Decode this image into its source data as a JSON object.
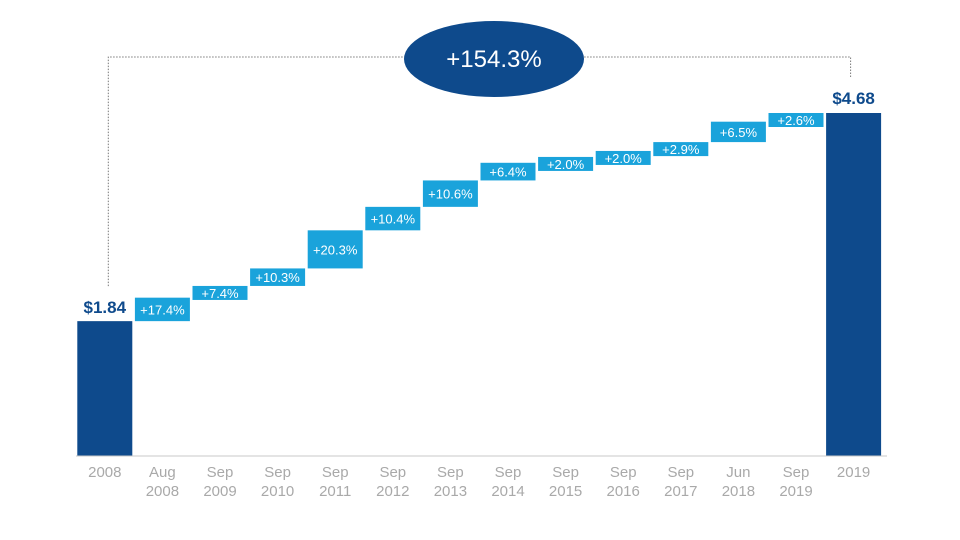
{
  "chart_data": {
    "type": "bar",
    "subtype": "waterfall",
    "title": "",
    "xlabel": "",
    "ylabel": "",
    "ylim": [
      0,
      5.3
    ],
    "grid": false,
    "legend": "none",
    "colors": {
      "total": "#0e4a8c",
      "step": "#1aa3db",
      "axis": "#c8c8c8",
      "callout": "#0e4a8c",
      "connector": "#7a7a7a"
    },
    "start": {
      "category": [
        "2008"
      ],
      "value": 1.84,
      "label": "$1.84"
    },
    "end": {
      "category": [
        "2019"
      ],
      "value": 4.68,
      "label": "$4.68"
    },
    "steps": [
      {
        "category": [
          "Aug",
          "2008"
        ],
        "pct": 17.4,
        "label": "+17.4%"
      },
      {
        "category": [
          "Sep",
          "2009"
        ],
        "pct": 7.4,
        "label": "+7.4%"
      },
      {
        "category": [
          "Sep",
          "2010"
        ],
        "pct": 10.3,
        "label": "+10.3%"
      },
      {
        "category": [
          "Sep",
          "2011"
        ],
        "pct": 20.3,
        "label": "+20.3%"
      },
      {
        "category": [
          "Sep",
          "2012"
        ],
        "pct": 10.4,
        "label": "+10.4%"
      },
      {
        "category": [
          "Sep",
          "2013"
        ],
        "pct": 10.6,
        "label": "+10.6%"
      },
      {
        "category": [
          "Sep",
          "2014"
        ],
        "pct": 6.4,
        "label": "+6.4%"
      },
      {
        "category": [
          "Sep",
          "2015"
        ],
        "pct": 2.0,
        "label": "+2.0%"
      },
      {
        "category": [
          "Sep",
          "2016"
        ],
        "pct": 2.0,
        "label": "+2.0%"
      },
      {
        "category": [
          "Sep",
          "2017"
        ],
        "pct": 2.9,
        "label": "+2.9%"
      },
      {
        "category": [
          "Jun",
          "2018"
        ],
        "pct": 6.5,
        "label": "+6.5%"
      },
      {
        "category": [
          "Sep",
          "2019"
        ],
        "pct": 2.6,
        "label": "+2.6%"
      }
    ],
    "total_change": {
      "pct": 154.3,
      "label": "+154.3%"
    }
  }
}
